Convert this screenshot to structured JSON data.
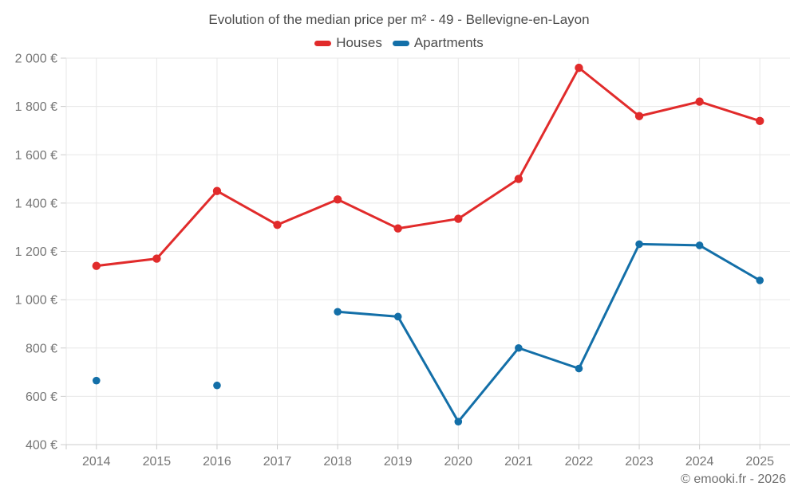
{
  "copyright": "© emooki.fr - 2026",
  "colors": {
    "houses": "#e12b2b",
    "apartments": "#136fa8",
    "grid": "#e7e7e7",
    "axis_line": "#cccccc",
    "tick_label": "#757575",
    "title_text": "#4c4c4c",
    "copyright_text": "#6f6f6f"
  },
  "chart_data": {
    "type": "line",
    "title": "Evolution of the median price per m² - 49 - Bellevigne-en-Layon",
    "categories": [
      "2014",
      "2015",
      "2016",
      "2017",
      "2018",
      "2019",
      "2020",
      "2021",
      "2022",
      "2023",
      "2024",
      "2025"
    ],
    "series": [
      {
        "name": "Houses",
        "color": "#e12b2b",
        "values": [
          1140,
          1170,
          1450,
          1310,
          1415,
          1295,
          1335,
          1500,
          1960,
          1760,
          1820,
          1740
        ]
      },
      {
        "name": "Apartments",
        "color": "#136fa8",
        "values": [
          665,
          null,
          645,
          null,
          950,
          930,
          495,
          800,
          715,
          1230,
          1225,
          1080
        ]
      }
    ],
    "y_axis": {
      "min": 400,
      "max": 2000,
      "step": 200,
      "tick_labels": [
        "400 €",
        "600 €",
        "800 €",
        "1 000 €",
        "1 200 €",
        "1 400 €",
        "1 600 €",
        "1 800 €",
        "2 000 €"
      ],
      "unit": "€"
    },
    "x_axis": {
      "label": ""
    },
    "legend_position": "top",
    "grid": true
  }
}
